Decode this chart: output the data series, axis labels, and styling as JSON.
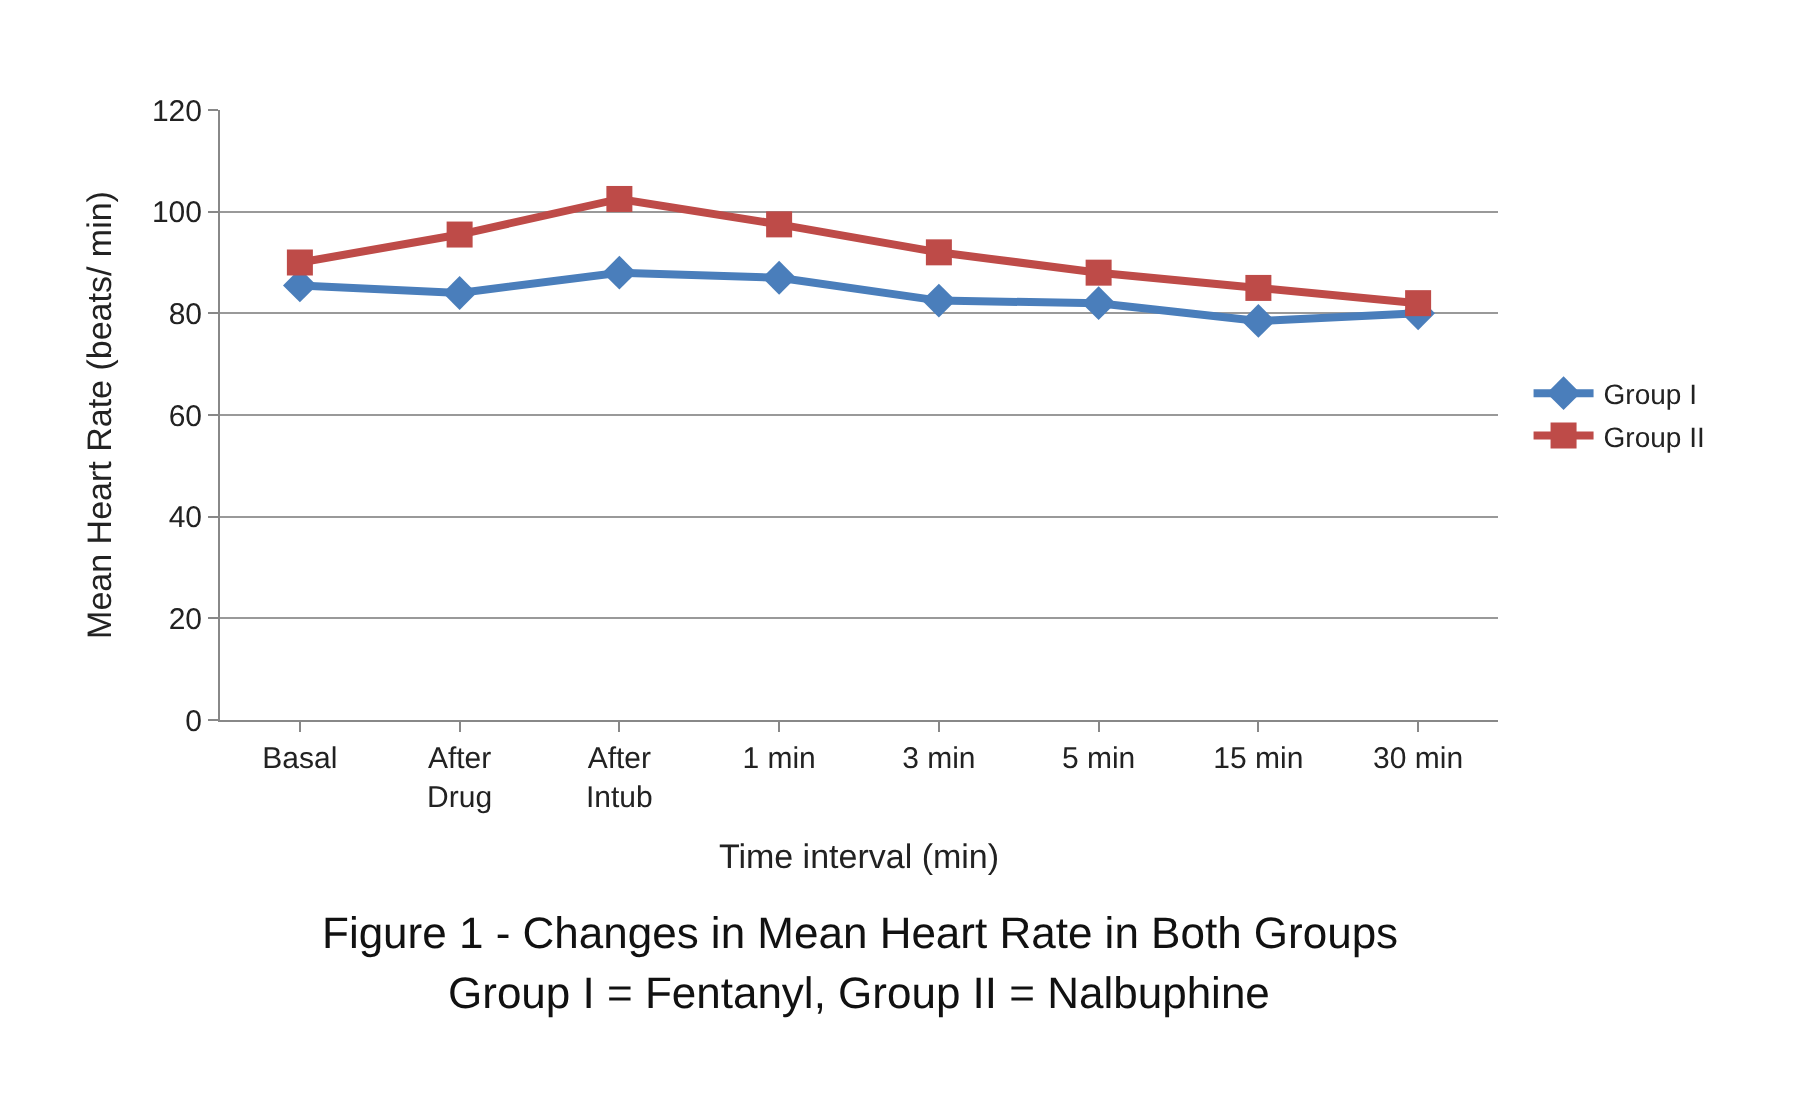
{
  "chart_data": {
    "type": "line",
    "xlabel": "Time interval (min)",
    "ylabel": "Mean Heart Rate (beats/ min)",
    "categories": [
      "Basal",
      "After Drug",
      "After Intub",
      "1 min",
      "3 min",
      "5 min",
      "15 min",
      "30 min"
    ],
    "series": [
      {
        "name": "Group I",
        "color": "#4a7ebb",
        "marker": "diamond",
        "values": [
          85.5,
          84,
          88,
          87,
          82.5,
          82,
          78.5,
          80
        ]
      },
      {
        "name": "Group II",
        "color": "#be4b48",
        "marker": "square",
        "values": [
          90,
          95.5,
          102.5,
          97.5,
          92,
          88,
          85,
          82
        ]
      }
    ],
    "ylim": [
      0,
      120
    ],
    "yticks": [
      0,
      20,
      40,
      60,
      80,
      100,
      120
    ],
    "grid": "y",
    "legend": "right",
    "annotations": [
      "Figure 1 - Changes in Mean Heart Rate in Both Groups",
      "Group I = Fentanyl, Group II = Nalbuphine"
    ]
  }
}
